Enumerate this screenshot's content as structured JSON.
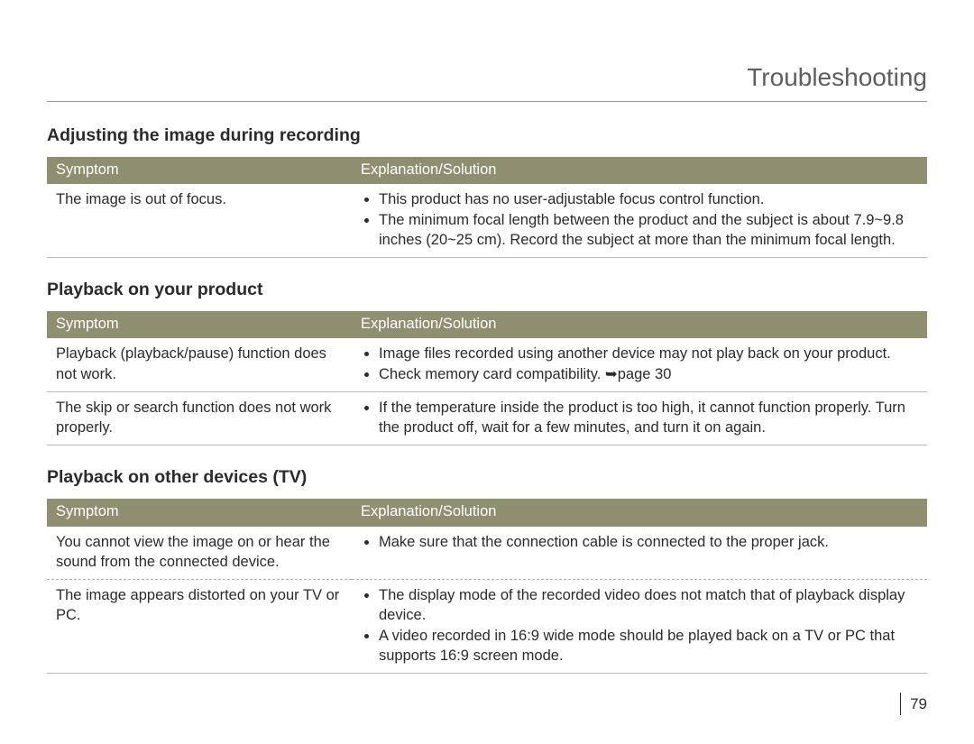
{
  "page": {
    "title": "Troubleshooting",
    "number": "79"
  },
  "headers": {
    "symptom": "Symptom",
    "solution": "Explanation/Solution"
  },
  "sections": {
    "adjusting": {
      "heading": "Adjusting the image during recording",
      "rows": {
        "r1": {
          "symptom": "The image is out of focus.",
          "b1": "This product has no user-adjustable focus control function.",
          "b2": "The minimum focal length between the product and the subject is about 7.9~9.8 inches (20~25 cm). Record the subject at more than the minimum focal length."
        }
      }
    },
    "playback_product": {
      "heading": "Playback on your product",
      "rows": {
        "r1": {
          "symptom": "Playback (playback/pause) function does not work.",
          "b1": "Image files recorded using another device may not play back on your product.",
          "b2": "Check memory card compatibility. ➥page 30"
        },
        "r2": {
          "symptom": "The skip or search function does not work properly.",
          "b1": "If the temperature inside the product is too high, it cannot function properly. Turn the product off, wait for a few minutes, and turn it on again."
        }
      }
    },
    "playback_tv": {
      "heading": "Playback on other devices (TV)",
      "rows": {
        "r1": {
          "symptom": "You cannot view the image on or hear the sound from the connected device.",
          "b1": "Make sure that the connection cable is connected to the proper jack."
        },
        "r2": {
          "symptom": "The image appears distorted on your TV or PC.",
          "b1": "The display mode of the recorded video does not match that of playback display device.",
          "b2": "A video recorded in 16:9 wide mode should be played back on a TV or PC that supports 16:9 screen mode."
        }
      }
    }
  }
}
